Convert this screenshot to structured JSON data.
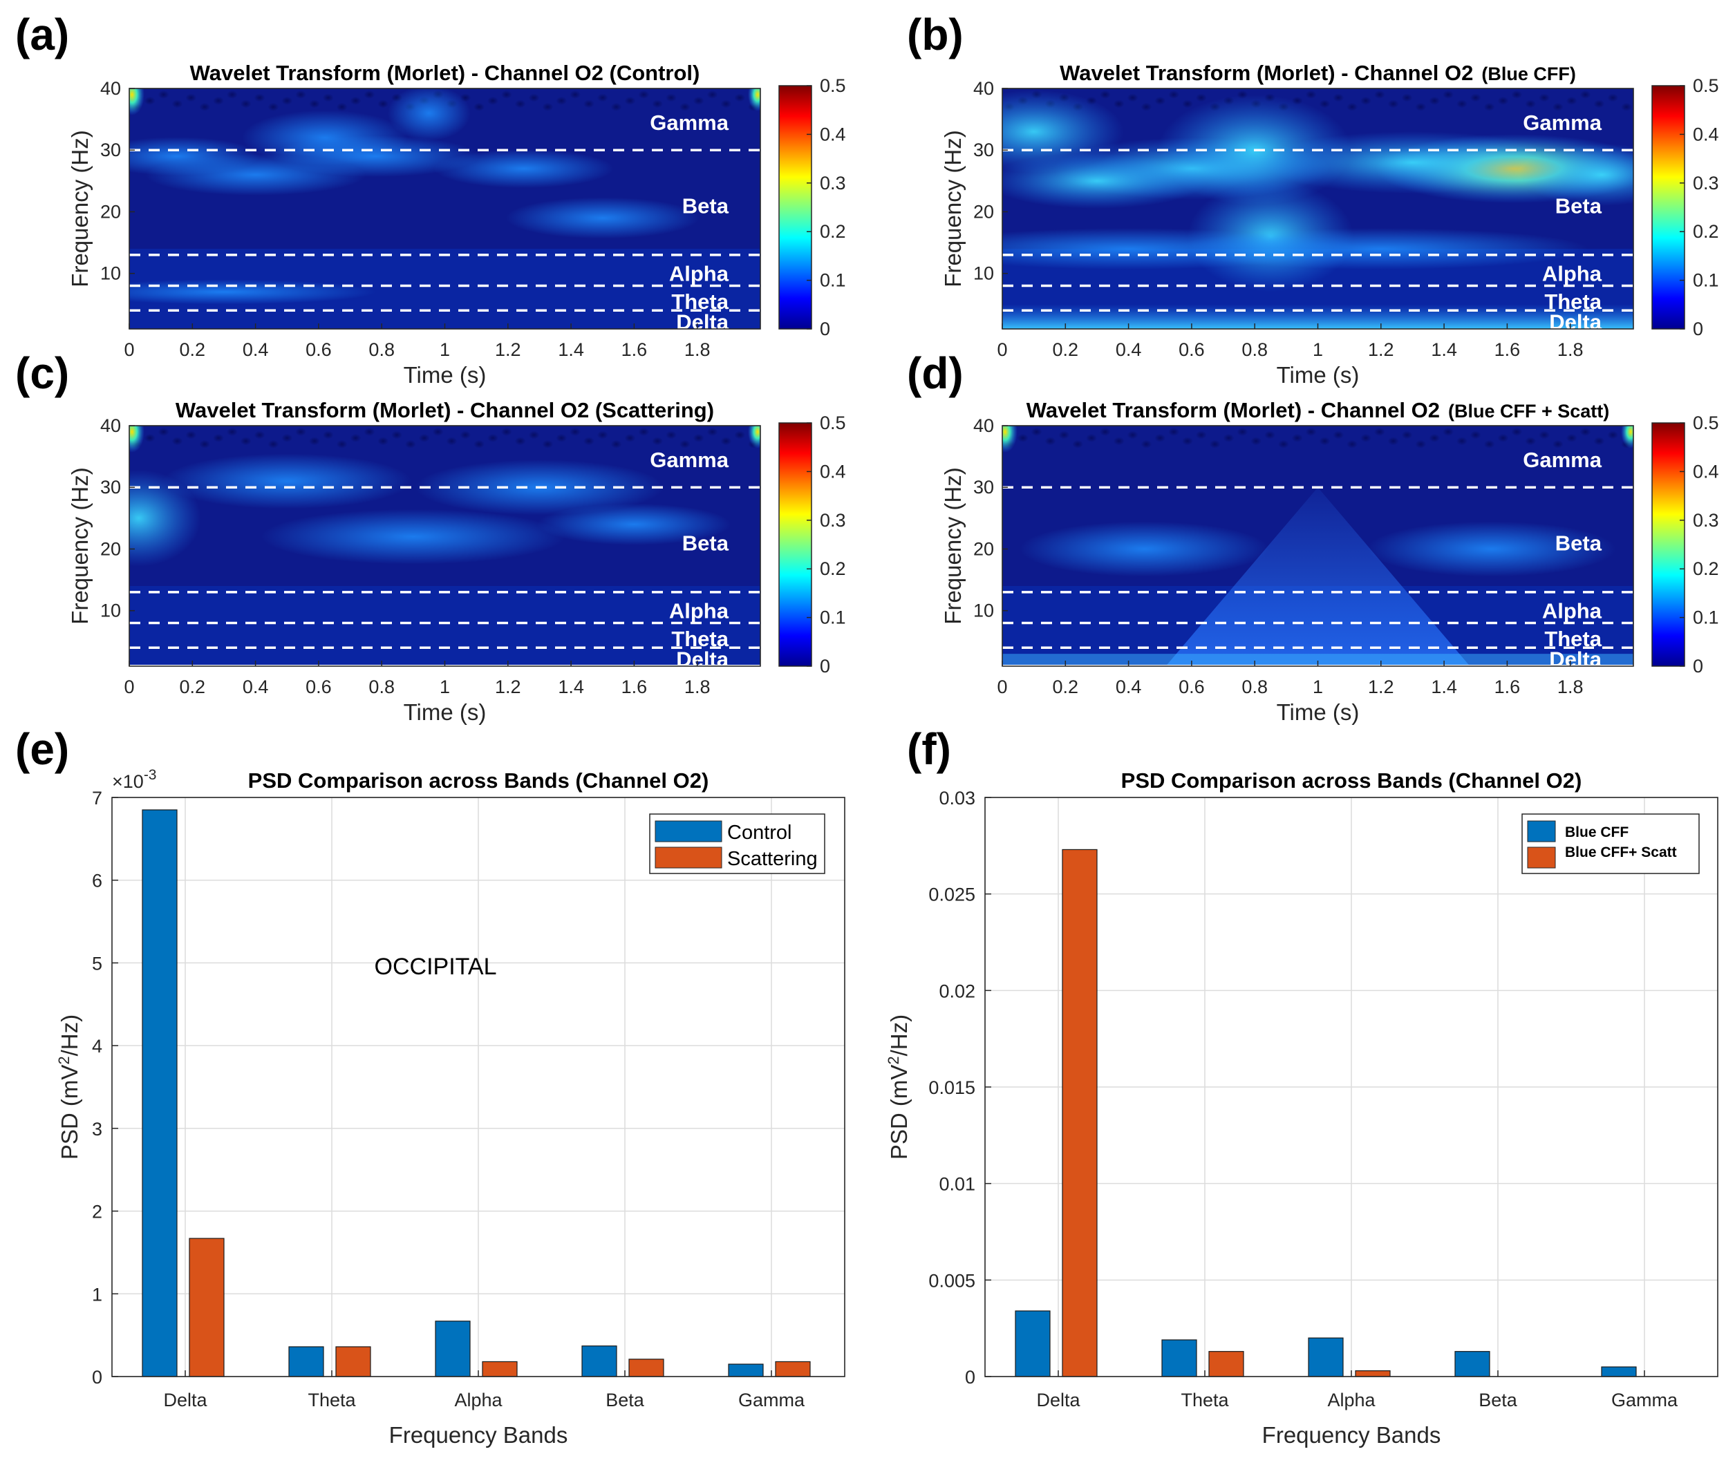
{
  "colors": {
    "bar_blue": "#0072BD",
    "bar_orange": "#D95319",
    "heat_bg": "#0d1a8c",
    "dash": "#ffffff"
  },
  "spectrograms": [
    {
      "letter": "(a)",
      "title_main": "Wavelet Transform (Morlet) - Channel O2 (Control)",
      "title_suffix": "",
      "condition": "Control",
      "xlabel": "Time (s)",
      "ylabel": "Frequency (Hz)",
      "x_ticks": [
        "0",
        "0.2",
        "0.4",
        "0.6",
        "0.8",
        "1",
        "1.2",
        "1.4",
        "1.6",
        "1.8"
      ],
      "y_ticks": [
        "10",
        "20",
        "30",
        "40"
      ],
      "colorbar_ticks": [
        "0",
        "0.1",
        "0.2",
        "0.3",
        "0.4",
        "0.5"
      ],
      "band_labels": [
        "Gamma",
        "Beta",
        "Alpha",
        "Theta",
        "Delta"
      ]
    },
    {
      "letter": "(b)",
      "title_main": "Wavelet Transform (Morlet) - Channel O2",
      "title_suffix": "(Blue CFF)",
      "condition": "Blue CFF",
      "xlabel": "Time (s)",
      "ylabel": "Frequency (Hz)",
      "x_ticks": [
        "0",
        "0.2",
        "0.4",
        "0.6",
        "0.8",
        "1",
        "1.2",
        "1.4",
        "1.6",
        "1.8"
      ],
      "y_ticks": [
        "10",
        "20",
        "30",
        "40"
      ],
      "colorbar_ticks": [
        "0",
        "0.1",
        "0.2",
        "0.3",
        "0.4",
        "0.5"
      ],
      "band_labels": [
        "Gamma",
        "Beta",
        "Alpha",
        "Theta",
        "Delta"
      ]
    },
    {
      "letter": "(c)",
      "title_main": "Wavelet Transform (Morlet) - Channel O2 (Scattering)",
      "title_suffix": "",
      "condition": "Scattering",
      "xlabel": "Time (s)",
      "ylabel": "Frequency (Hz)",
      "x_ticks": [
        "0",
        "0.2",
        "0.4",
        "0.6",
        "0.8",
        "1",
        "1.2",
        "1.4",
        "1.6",
        "1.8"
      ],
      "y_ticks": [
        "10",
        "20",
        "30",
        "40"
      ],
      "colorbar_ticks": [
        "0",
        "0.1",
        "0.2",
        "0.3",
        "0.4",
        "0.5"
      ],
      "band_labels": [
        "Gamma",
        "Beta",
        "Alpha",
        "Theta",
        "Delta"
      ]
    },
    {
      "letter": "(d)",
      "title_main": "Wavelet Transform (Morlet) - Channel O2",
      "title_suffix": "(Blue CFF + Scatt)",
      "condition": "Blue CFF + Scatt",
      "xlabel": "Time (s)",
      "ylabel": "Frequency (Hz)",
      "x_ticks": [
        "0",
        "0.2",
        "0.4",
        "0.6",
        "0.8",
        "1",
        "1.2",
        "1.4",
        "1.6",
        "1.8"
      ],
      "y_ticks": [
        "10",
        "20",
        "30",
        "40"
      ],
      "colorbar_ticks": [
        "0",
        "0.1",
        "0.2",
        "0.3",
        "0.4",
        "0.5"
      ],
      "band_labels": [
        "Gamma",
        "Beta",
        "Alpha",
        "Theta",
        "Delta"
      ]
    }
  ],
  "chart_data": [
    {
      "type": "heatmap",
      "panel": "(a)",
      "title": "Wavelet Transform (Morlet) - Channel O2 (Control)",
      "xlabel": "Time (s)",
      "ylabel": "Frequency (Hz)",
      "xlim": [
        0,
        2
      ],
      "ylim": [
        1,
        40
      ],
      "clim": [
        0,
        0.5
      ],
      "band_boundaries_hz": [
        4,
        8,
        13,
        30
      ]
    },
    {
      "type": "heatmap",
      "panel": "(b)",
      "title": "Wavelet Transform (Morlet) - Channel O2 (Blue CFF)",
      "xlabel": "Time (s)",
      "ylabel": "Frequency (Hz)",
      "xlim": [
        0,
        2
      ],
      "ylim": [
        1,
        40
      ],
      "clim": [
        0,
        0.5
      ],
      "band_boundaries_hz": [
        4,
        8,
        13,
        30
      ]
    },
    {
      "type": "heatmap",
      "panel": "(c)",
      "title": "Wavelet Transform (Morlet) - Channel O2 (Scattering)",
      "xlabel": "Time (s)",
      "ylabel": "Frequency (Hz)",
      "xlim": [
        0,
        2
      ],
      "ylim": [
        1,
        40
      ],
      "clim": [
        0,
        0.5
      ],
      "band_boundaries_hz": [
        4,
        8,
        13,
        30
      ]
    },
    {
      "type": "heatmap",
      "panel": "(d)",
      "title": "Wavelet Transform (Morlet) - Channel O2 (Blue CFF + Scatt)",
      "xlabel": "Time (s)",
      "ylabel": "Frequency (Hz)",
      "xlim": [
        0,
        2
      ],
      "ylim": [
        1,
        40
      ],
      "clim": [
        0,
        0.5
      ],
      "band_boundaries_hz": [
        4,
        8,
        13,
        30
      ]
    },
    {
      "type": "bar",
      "panel": "(e)",
      "title": "PSD Comparison across Bands (Channel O2)",
      "xlabel": "Frequency Bands",
      "ylabel": "PSD (mV2/Hz)",
      "ylabel_main": "PSD (mV",
      "ylabel_sup": "2",
      "ylabel_tail": "/Hz)",
      "exponent_base": "×10",
      "exponent_power": "-3",
      "annotation": "OCCIPITAL",
      "categories": [
        "Delta",
        "Theta",
        "Alpha",
        "Beta",
        "Gamma"
      ],
      "ylim": [
        0,
        7
      ],
      "y_ticks": [
        0,
        1,
        2,
        3,
        4,
        5,
        6,
        7
      ],
      "y_tick_labels": [
        "0",
        "1",
        "2",
        "3",
        "4",
        "5",
        "6",
        "7"
      ],
      "legend_position": "top-right",
      "series": [
        {
          "name": "Control",
          "values": [
            6.85,
            0.36,
            0.67,
            0.37,
            0.15
          ]
        },
        {
          "name": "Scattering",
          "values": [
            1.67,
            0.36,
            0.18,
            0.21,
            0.18
          ]
        }
      ]
    },
    {
      "type": "bar",
      "panel": "(f)",
      "title": "PSD Comparison across Bands (Channel O2)",
      "xlabel": "Frequency Bands",
      "ylabel": "PSD (mV2/Hz)",
      "ylabel_main": "PSD (mV",
      "ylabel_sup": "2",
      "ylabel_tail": "/Hz)",
      "categories": [
        "Delta",
        "Theta",
        "Alpha",
        "Beta",
        "Gamma"
      ],
      "ylim": [
        0,
        0.03
      ],
      "y_ticks": [
        0,
        0.005,
        0.01,
        0.015,
        0.02,
        0.025,
        0.03
      ],
      "y_tick_labels": [
        "0",
        "0.005",
        "0.01",
        "0.015",
        "0.02",
        "0.025",
        "0.03"
      ],
      "legend_position": "top-right",
      "series": [
        {
          "name": "Blue CFF",
          "values": [
            0.0034,
            0.0019,
            0.002,
            0.0013,
            0.0005
          ]
        },
        {
          "name": "Blue CFF+ Scatt",
          "values": [
            0.0273,
            0.0013,
            0.0003,
            0.0,
            0.0
          ]
        }
      ]
    }
  ]
}
